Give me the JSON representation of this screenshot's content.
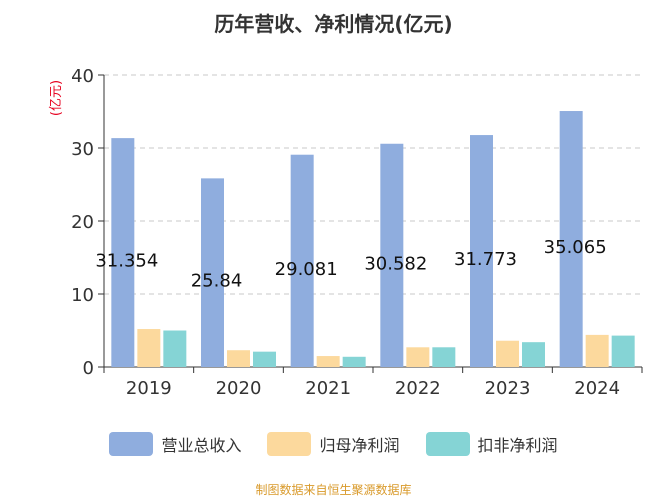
{
  "chart_data": {
    "type": "bar",
    "title": "历年营收、净利情况(亿元)",
    "ylabel": "(亿元)",
    "xlabel": "",
    "ylim": [
      0,
      40
    ],
    "yticks": [
      0,
      10,
      20,
      30,
      40
    ],
    "grid": true,
    "legend_position": "bottom",
    "categories": [
      "2019",
      "2020",
      "2021",
      "2022",
      "2023",
      "2024"
    ],
    "series": [
      {
        "name": "营业总收入",
        "color": "#8fadde",
        "values": [
          31.354,
          25.84,
          29.081,
          30.582,
          31.773,
          35.065
        ],
        "labels": [
          "31.354",
          "25.84",
          "29.081",
          "30.582",
          "31.773",
          "35.065"
        ]
      },
      {
        "name": "归母净利润",
        "color": "#fcd99d",
        "values": [
          5.2,
          2.3,
          1.5,
          2.7,
          3.6,
          4.4
        ]
      },
      {
        "name": "扣非净利润",
        "color": "#85d4d5",
        "values": [
          5.0,
          2.1,
          1.4,
          2.7,
          3.4,
          4.3
        ]
      }
    ]
  },
  "footer": {
    "source": "制图数据来自恒生聚源数据库"
  }
}
